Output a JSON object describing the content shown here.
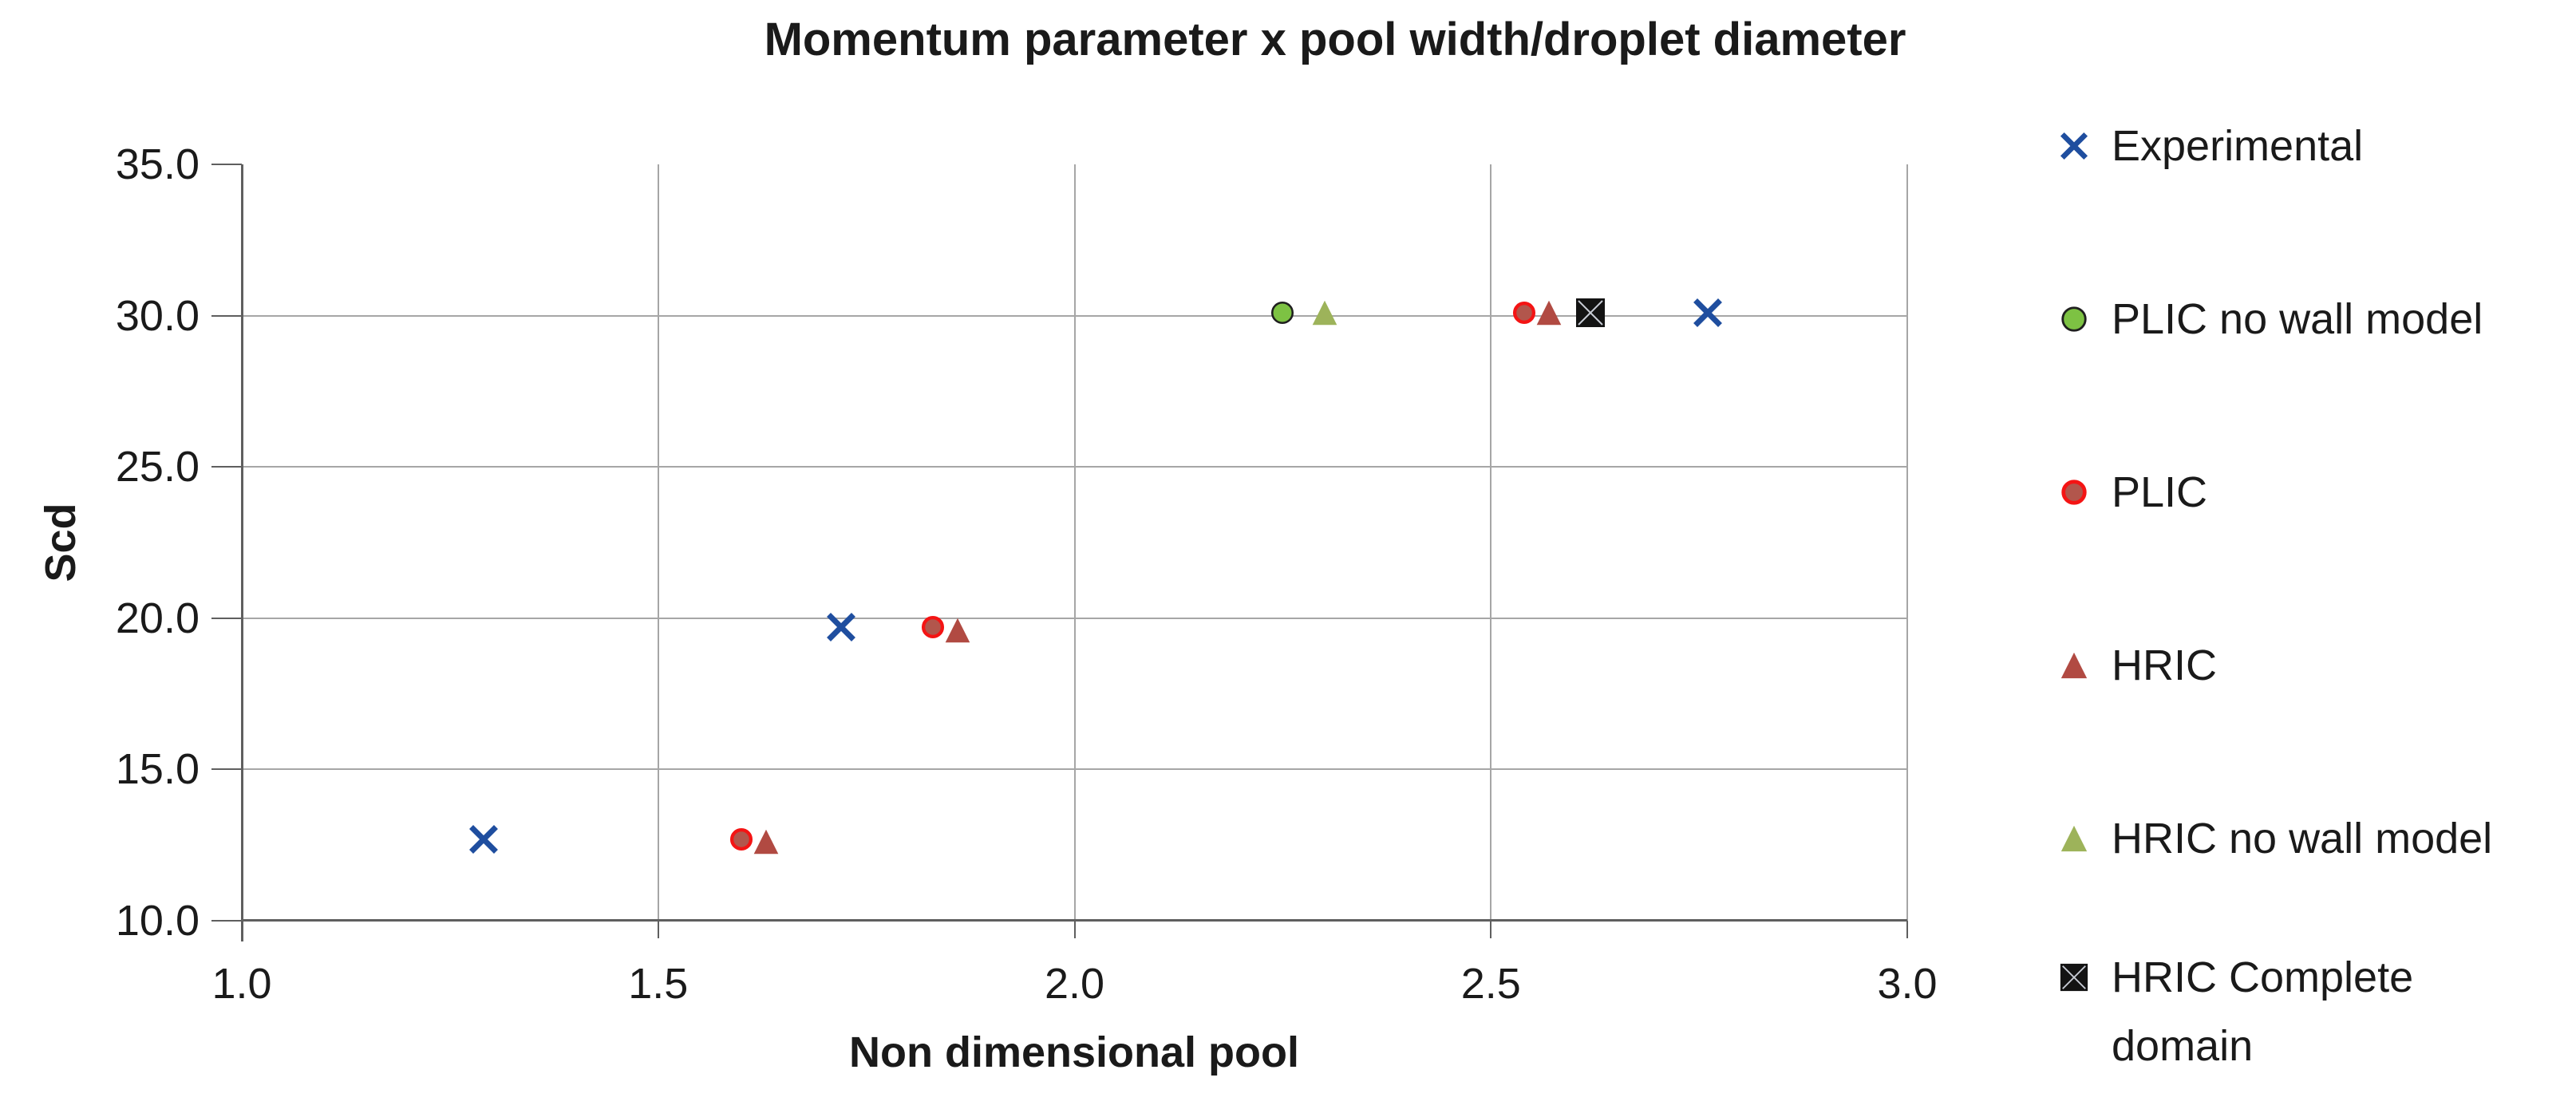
{
  "chart_data": {
    "type": "scatter",
    "title": "Momentum parameter x pool width/droplet diameter",
    "xlabel": "Non dimensional pool",
    "ylabel": "Scd",
    "xlim": [
      1.0,
      3.0
    ],
    "ylim": [
      10.0,
      35.0
    ],
    "xticks": [
      "1.0",
      "1.5",
      "2.0",
      "2.5",
      "3.0"
    ],
    "yticks": [
      "10.0",
      "15.0",
      "20.0",
      "25.0",
      "30.0",
      "35.0"
    ],
    "grid": true,
    "legend_position": "right",
    "colors": {
      "gridline": "#a6a6a6",
      "axis": "#5f5f5f",
      "text": "#1a1a1a"
    },
    "series": [
      {
        "name": "Experimental",
        "marker": "x-cross",
        "color": "#1f4e9f",
        "points": [
          [
            1.29,
            12.7
          ],
          [
            1.72,
            19.7
          ],
          [
            2.76,
            30.1
          ]
        ]
      },
      {
        "name": "PLIC no wall model",
        "marker": "circle",
        "color": "#7dc243",
        "outline": "#1f1f1f",
        "outline_width": 3,
        "points": [
          [
            2.25,
            30.1
          ]
        ]
      },
      {
        "name": "PLIC",
        "marker": "circle",
        "color": "#b2564c",
        "outline": "#f41414",
        "outline_width": 5,
        "points": [
          [
            1.6,
            12.7
          ],
          [
            1.83,
            19.7
          ],
          [
            2.54,
            30.1
          ]
        ]
      },
      {
        "name": "HRIC",
        "marker": "triangle",
        "color": "#b14a42",
        "points": [
          [
            1.63,
            12.6
          ],
          [
            1.86,
            19.6
          ],
          [
            2.57,
            30.1
          ]
        ]
      },
      {
        "name": "HRIC no wall model",
        "marker": "triangle",
        "color": "#9db35a",
        "points": [
          [
            2.3,
            30.1
          ]
        ]
      },
      {
        "name": "HRIC Complete domain",
        "marker": "square-x",
        "color": "#131313",
        "outline": "#c9cdd6",
        "points": [
          [
            2.62,
            30.1
          ]
        ]
      }
    ]
  }
}
